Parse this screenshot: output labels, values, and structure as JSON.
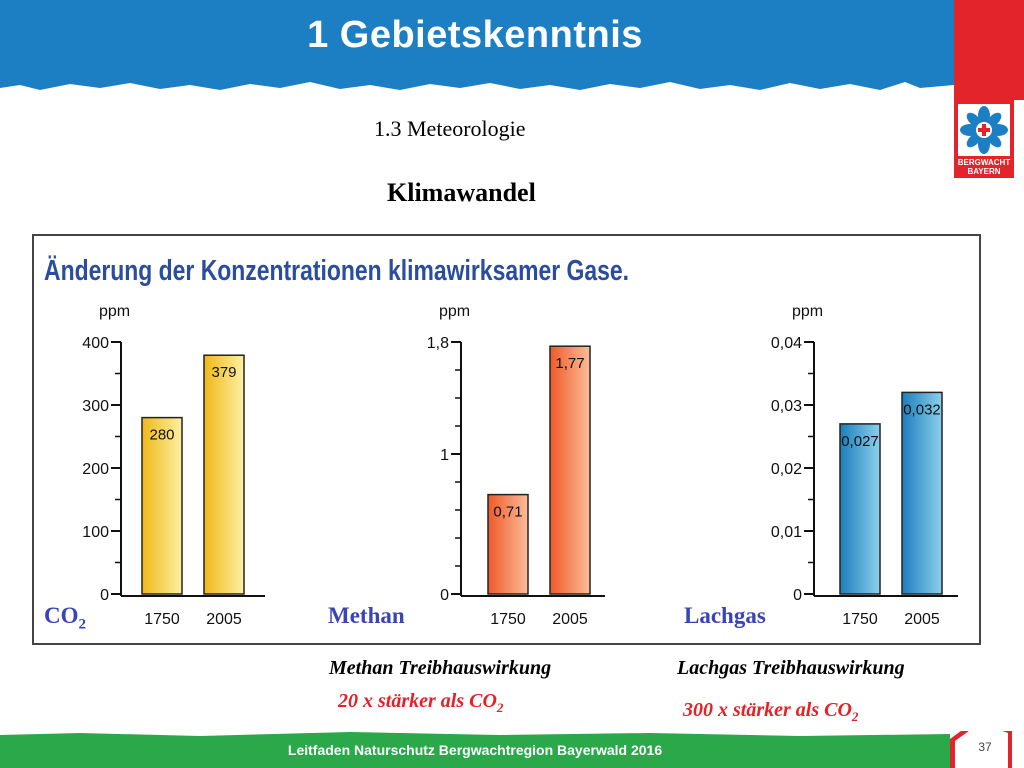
{
  "header": {
    "title": "1  Gebietskenntnis"
  },
  "section": {
    "subtitle": "1.3  Meteorologie",
    "heading": "Klimawandel"
  },
  "logo": {
    "line1": "BERGWACHT",
    "line2": "BAYERN"
  },
  "chart_data": {
    "type": "bar",
    "title": "Änderung der Konzentrationen klimawirksamer Gase.",
    "unit": "ppm",
    "categories": [
      "1750",
      "2005"
    ],
    "panels": [
      {
        "name": "CO",
        "sub": "2",
        "values": [
          280,
          379
        ],
        "value_labels": [
          "280",
          "379"
        ],
        "ylim": [
          0,
          400
        ],
        "ticks": [
          0,
          100,
          200,
          300,
          400
        ],
        "tick_labels": [
          "0",
          "100",
          "200",
          "300",
          "400"
        ],
        "color_light": "#fdf0a2",
        "color_dark": "#efb81a"
      },
      {
        "name": "Methan",
        "sub": "",
        "values": [
          0.71,
          1.77
        ],
        "value_labels": [
          "0,71",
          "1,77"
        ],
        "ylim": [
          0,
          1.8
        ],
        "ticks": [
          0,
          1,
          1.8
        ],
        "tick_labels": [
          "0",
          "1",
          "1,8"
        ],
        "color_light": "#fdbd98",
        "color_dark": "#ee5a2a"
      },
      {
        "name": "Lachgas",
        "sub": "",
        "values": [
          0.027,
          0.032
        ],
        "value_labels": [
          "0,027",
          "0,032"
        ],
        "ylim": [
          0,
          0.04
        ],
        "ticks": [
          0,
          0.01,
          0.02,
          0.03,
          0.04
        ],
        "tick_labels": [
          "0",
          "0,01",
          "0,02",
          "0,03",
          "0,04"
        ],
        "color_light": "#8cd0ec",
        "color_dark": "#1c7fbd"
      }
    ]
  },
  "notes": {
    "methan_title": "Methan Treibhauswirkung",
    "methan_text": "20 x stärker als CO",
    "lachgas_title": "Lachgas Treibhauswirkung",
    "lachgas_text": "300 x stärker als CO",
    "co2_sub": "2"
  },
  "footer": {
    "text": "Leitfaden Naturschutz Bergwachtregion Bayerwald 2016",
    "page_number": "37"
  },
  "colors": {
    "banner": "#1d7fc3",
    "red": "#e3252b",
    "footer_green": "#2aa84a",
    "title_blue": "#2b4d9e",
    "label_blue": "#3a43b8",
    "note_red": "#e32129"
  }
}
